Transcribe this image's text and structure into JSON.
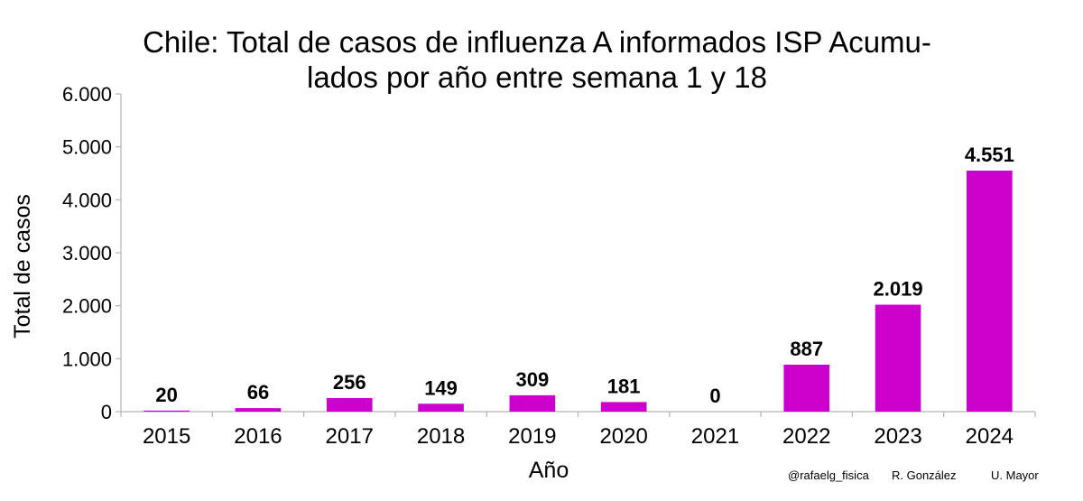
{
  "chart_data": {
    "type": "bar",
    "title_line1": "Chile: Total de casos de influenza A informados ISP Acumu-",
    "title_line2": "lados por año entre semana 1 y 18",
    "xlabel": "Año",
    "ylabel": "Total de casos",
    "categories": [
      "2015",
      "2016",
      "2017",
      "2018",
      "2019",
      "2020",
      "2021",
      "2022",
      "2023",
      "2024"
    ],
    "values": [
      20,
      66,
      256,
      149,
      309,
      181,
      0,
      887,
      2019,
      4551
    ],
    "value_labels": [
      "20",
      "66",
      "256",
      "149",
      "309",
      "181",
      "0",
      "887",
      "2.019",
      "4.551"
    ],
    "ylim": [
      0,
      6000
    ],
    "yticks": [
      0,
      1000,
      2000,
      3000,
      4000,
      5000,
      6000
    ],
    "ytick_labels": [
      "0",
      "1.000",
      "2.000",
      "3.000",
      "4.000",
      "5.000",
      "6.000"
    ],
    "grid": false,
    "bar_color": "#cc00cc",
    "legend": "none"
  },
  "credits": {
    "handle": "@rafaelg_fisica",
    "author": "R. González",
    "institution": "U. Mayor"
  }
}
